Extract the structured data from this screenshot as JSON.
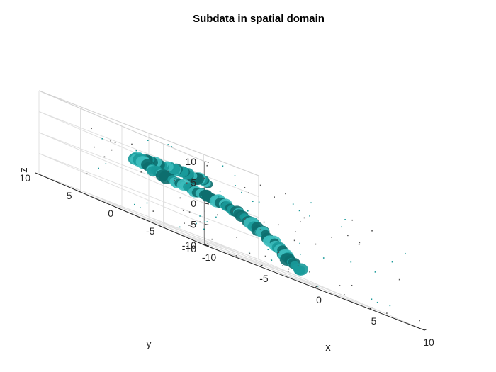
{
  "chart_data": {
    "type": "scatter",
    "subtype": "3d-isosurface",
    "title": "Subdata in spatial domain",
    "xlabel": "x",
    "ylabel": "y",
    "zlabel": "z",
    "xlim": [
      -10,
      10
    ],
    "ylim": [
      -10,
      10
    ],
    "zlim": [
      -10,
      10
    ],
    "xticks": [
      -10,
      -5,
      0,
      5,
      10
    ],
    "yticks": [
      -10,
      -5,
      0,
      5,
      10
    ],
    "zticks": [
      -10,
      -5,
      0,
      5,
      10
    ],
    "grid": true,
    "surface_color": "#1a9a9a",
    "path": [
      {
        "x": -1,
        "y": 1.5,
        "z": 4
      },
      {
        "x": -2.5,
        "y": 2.5,
        "z": 4.5
      },
      {
        "x": -5,
        "y": 3,
        "z": 4
      },
      {
        "x": -6.5,
        "y": 3,
        "z": 3.5
      },
      {
        "x": -5.5,
        "y": 1.5,
        "z": 2
      },
      {
        "x": -3.5,
        "y": 0.5,
        "z": 1.5
      },
      {
        "x": -1.5,
        "y": -0.5,
        "z": 1
      },
      {
        "x": 0,
        "y": -1,
        "z": 0
      },
      {
        "x": 1.5,
        "y": -1.5,
        "z": -2
      },
      {
        "x": 3,
        "y": -2,
        "z": -5
      },
      {
        "x": 4.5,
        "y": -2.5,
        "z": -8
      }
    ]
  }
}
